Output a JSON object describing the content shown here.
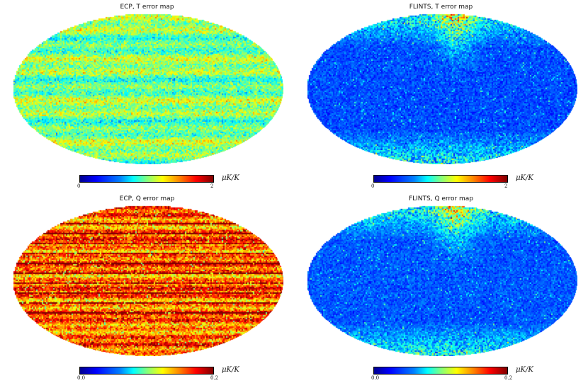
{
  "panels": [
    {
      "title": "ECP, T error map",
      "tick_min": "0",
      "tick_max": "2",
      "unit": "μK/K",
      "style": "ecp_t"
    },
    {
      "title": "FLINTS, T error map",
      "tick_min": "0",
      "tick_max": "2",
      "unit": "μK/K",
      "style": "flints_t"
    },
    {
      "title": "ECP, Q error map",
      "tick_min": "0.0",
      "tick_max": "0.2",
      "unit": "μK/K",
      "style": "ecp_q"
    },
    {
      "title": "FLINTS, Q error map",
      "tick_min": "0.0",
      "tick_max": "0.2",
      "unit": "μK/K",
      "style": "flints_q"
    }
  ],
  "colormap": [
    "#00008f",
    "#0000ff",
    "#0080ff",
    "#00ffff",
    "#80ff80",
    "#ffff00",
    "#ff8000",
    "#ff0000",
    "#800000"
  ]
}
